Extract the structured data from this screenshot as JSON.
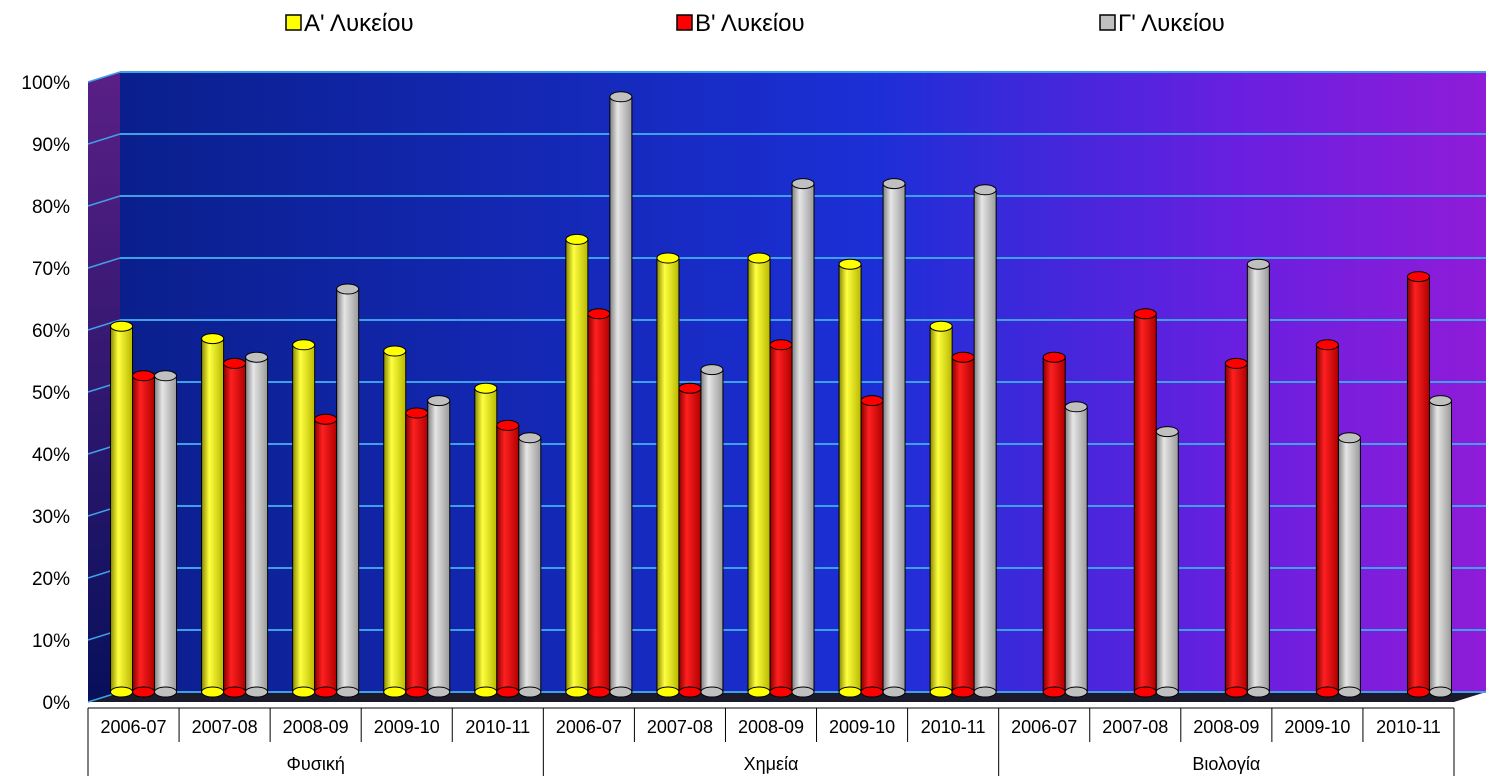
{
  "chart_data": {
    "type": "bar",
    "groups": [
      {
        "label": "Φυσική",
        "categories": [
          "2006-07",
          "2007-08",
          "2008-09",
          "2009-10",
          "2010-11"
        ]
      },
      {
        "label": "Χημεία",
        "categories": [
          "2006-07",
          "2007-08",
          "2008-09",
          "2009-10",
          "2010-11"
        ]
      },
      {
        "label": "Βιολογία",
        "categories": [
          "2006-07",
          "2007-08",
          "2008-09",
          "2009-10",
          "2010-11"
        ]
      }
    ],
    "series": [
      {
        "name": "Α' Λυκείου",
        "color": "#FFFF00",
        "values": [
          59,
          57,
          56,
          55,
          49,
          73,
          70,
          70,
          69,
          59,
          null,
          null,
          null,
          null,
          null
        ]
      },
      {
        "name": "Β' Λυκείου",
        "color": "#FF0000",
        "values": [
          51,
          53,
          44,
          45,
          43,
          61,
          49,
          56,
          47,
          54,
          54,
          61,
          53,
          56,
          67
        ]
      },
      {
        "name": "Γ' Λυκείου",
        "color": "#C0C0C0",
        "values": [
          51,
          54,
          65,
          47,
          41,
          96,
          52,
          82,
          82,
          81,
          46,
          42,
          69,
          41,
          47
        ]
      }
    ],
    "ylim": [
      0,
      100
    ],
    "yticks": [
      "0%",
      "10%",
      "20%",
      "30%",
      "40%",
      "50%",
      "60%",
      "70%",
      "80%",
      "90%",
      "100%"
    ],
    "grid": true,
    "legend_position": "top"
  }
}
